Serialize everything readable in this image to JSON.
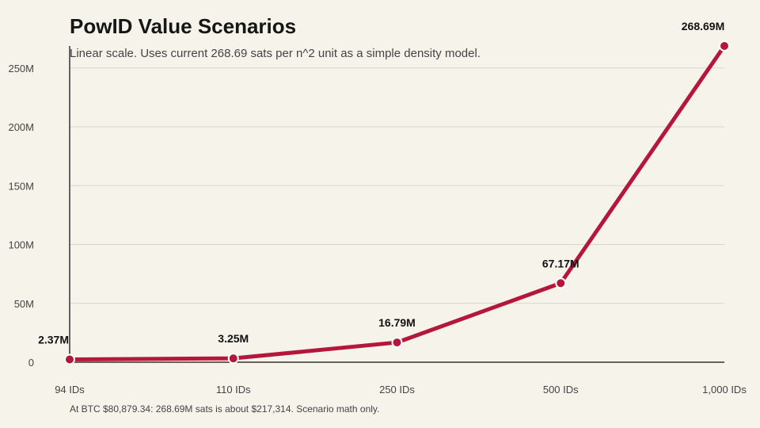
{
  "title": "PowID Value Scenarios",
  "subtitle": "Linear scale. Uses current 268.69 sats per n^2 unit as a simple density model.",
  "footnote": "At BTC $80,879.34: 268.69M sats is about $217,314. Scenario math only.",
  "colors": {
    "line": "#b5173b",
    "grid": "#d8d5cf",
    "axis": "#333333"
  },
  "chart_data": {
    "type": "line",
    "title": "PowID Value Scenarios",
    "categories": [
      "94 IDs",
      "110 IDs",
      "250 IDs",
      "500 IDs",
      "1,000 IDs"
    ],
    "values": [
      2370000,
      3250000,
      16790000,
      67170000,
      268690000
    ],
    "data_labels": [
      "2.37M",
      "3.25M",
      "16.79M",
      "67.17M",
      "268.69M"
    ],
    "y_ticks": [
      {
        "value": 0,
        "label": "0"
      },
      {
        "value": 50000000,
        "label": "50M"
      },
      {
        "value": 100000000,
        "label": "100M"
      },
      {
        "value": 150000000,
        "label": "150M"
      },
      {
        "value": 200000000,
        "label": "200M"
      },
      {
        "value": 250000000,
        "label": "250M"
      }
    ],
    "ylim": [
      0,
      268690000
    ],
    "grid": true,
    "xlabel": "",
    "ylabel": ""
  }
}
